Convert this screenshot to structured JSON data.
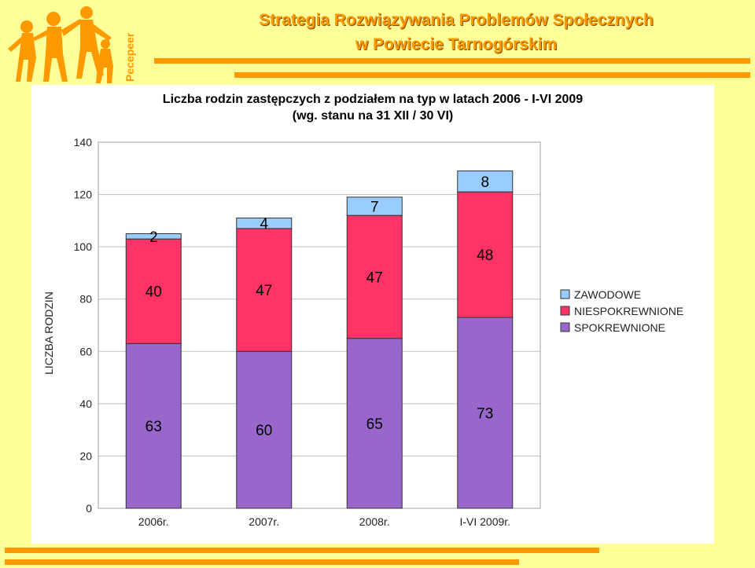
{
  "header": {
    "title_line1": "Strategia Rozwiązywania Problemów Społecznych",
    "title_line2": "w Powiecie Tarnogórskim",
    "logo_text": "Pecepeer",
    "logo_icon": "dancing-figures-logo"
  },
  "colors": {
    "background": "#ffff99",
    "accent": "#ff9900",
    "zawodowe": "#99ccff",
    "niespokrewnione": "#ff3366",
    "spokrewnione": "#9966cc"
  },
  "chart_data": {
    "type": "bar",
    "stacked": true,
    "title_line1": "Liczba rodzin zastępczych z podziałem na typ w latach 2006 - I-VI 2009",
    "title_line2": "(wg. stanu na 31 XII / 30 VI)",
    "xlabel": "",
    "ylabel": "LICZBA RODZIN",
    "ylim": [
      0,
      140
    ],
    "yticks": [
      0,
      20,
      40,
      60,
      80,
      100,
      120,
      140
    ],
    "grid": true,
    "legend_position": "right",
    "categories": [
      "2006r.",
      "2007r.",
      "2008r.",
      "I-VI 2009r."
    ],
    "series": [
      {
        "name": "SPOKREWNIONE",
        "color": "#9966cc",
        "values": [
          63,
          60,
          65,
          73
        ]
      },
      {
        "name": "NIESPOKREWNIONE",
        "color": "#ff3366",
        "values": [
          40,
          47,
          47,
          48
        ]
      },
      {
        "name": "ZAWODOWE",
        "color": "#99ccff",
        "values": [
          2,
          4,
          7,
          8
        ]
      }
    ],
    "legend_order": [
      "ZAWODOWE",
      "NIESPOKREWNIONE",
      "SPOKREWNIONE"
    ]
  }
}
